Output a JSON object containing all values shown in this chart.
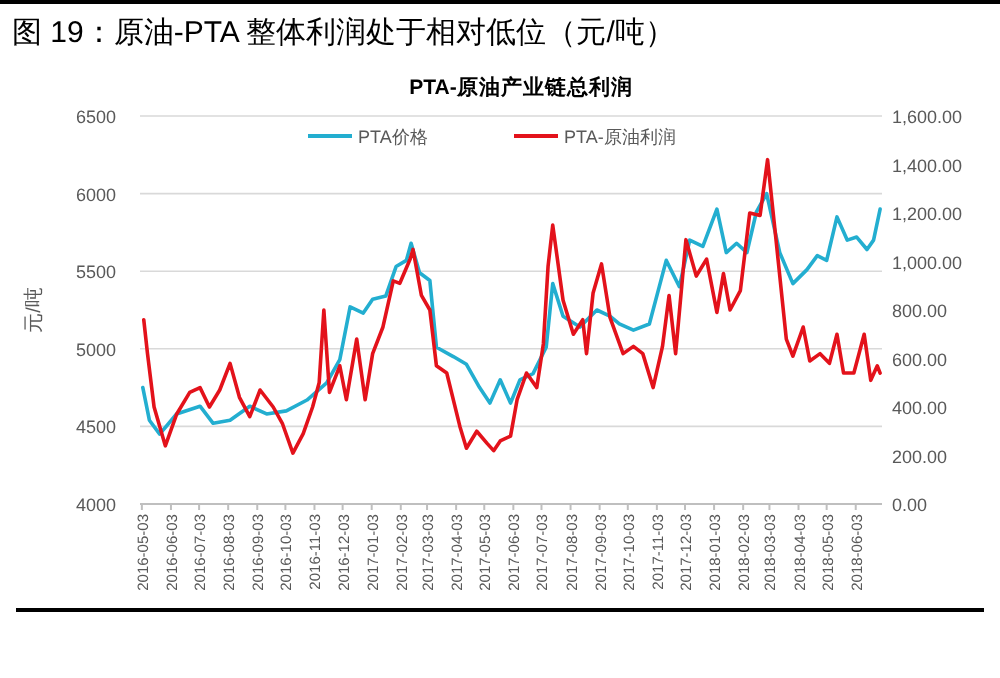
{
  "chart_data": {
    "type": "line",
    "title": "图 19：原油-PTA 整体利润处于相对低位（元/吨）",
    "subtitle": "PTA-原油产业链总利润",
    "ylabel": "元/吨",
    "xlim": [
      "2016-05-01",
      "2018-07-01"
    ],
    "xticks": [
      "2016-05-03",
      "2016-06-03",
      "2016-07-03",
      "2016-08-03",
      "2016-09-03",
      "2016-10-03",
      "2016-11-03",
      "2016-12-03",
      "2017-01-03",
      "2017-02-03",
      "2017-03-03",
      "2017-04-03",
      "2017-05-03",
      "2017-06-03",
      "2017-07-03",
      "2017-08-03",
      "2017-09-03",
      "2017-10-03",
      "2017-11-03",
      "2017-12-03",
      "2018-01-03",
      "2018-02-03",
      "2018-03-03",
      "2018-04-03",
      "2018-05-03",
      "2018-06-03"
    ],
    "ylim": [
      4000,
      6500
    ],
    "yticks": [
      4000,
      4500,
      5000,
      5500,
      6000,
      6500
    ],
    "y2lim": [
      0,
      1600
    ],
    "y2ticks": [
      {
        "value": 0,
        "label": "0.00"
      },
      {
        "value": 200,
        "label": "200.00"
      },
      {
        "value": 400,
        "label": "400.00"
      },
      {
        "value": 600,
        "label": "600.00"
      },
      {
        "value": 800,
        "label": "800.00"
      },
      {
        "value": 1000,
        "label": "1,000.00"
      },
      {
        "value": 1200,
        "label": "1,200.00"
      },
      {
        "value": 1400,
        "label": "1,400.00"
      },
      {
        "value": 1600,
        "label": "1,600.00"
      }
    ],
    "grid": "y",
    "legend": "top",
    "series": [
      {
        "name": "PTA价格",
        "color": "#23aed0",
        "x": [
          "2016-05-04",
          "2016-05-11",
          "2016-05-22",
          "2016-06-09",
          "2016-07-04",
          "2016-07-18",
          "2016-08-05",
          "2016-08-26",
          "2016-09-13",
          "2016-10-04",
          "2016-10-26",
          "2016-11-16",
          "2016-11-30",
          "2016-12-11",
          "2016-12-25",
          "2017-01-04",
          "2017-01-18",
          "2017-01-29",
          "2017-02-09",
          "2017-02-14",
          "2017-02-23",
          "2017-03-06",
          "2017-03-13",
          "2017-03-31",
          "2017-04-14",
          "2017-04-28",
          "2017-05-09",
          "2017-05-20",
          "2017-05-31",
          "2017-06-10",
          "2017-06-24",
          "2017-07-08",
          "2017-07-15",
          "2017-07-26",
          "2017-08-13",
          "2017-08-31",
          "2017-09-14",
          "2017-09-24",
          "2017-10-09",
          "2017-10-26",
          "2017-11-13",
          "2017-11-27",
          "2017-12-08",
          "2017-12-22",
          "2018-01-06",
          "2018-01-16",
          "2018-01-27",
          "2018-02-07",
          "2018-02-17",
          "2018-02-28",
          "2018-03-14",
          "2018-03-28",
          "2018-04-12",
          "2018-04-23",
          "2018-05-03",
          "2018-05-14",
          "2018-05-25",
          "2018-06-04",
          "2018-06-15",
          "2018-06-22",
          "2018-06-29"
        ],
        "values": [
          4750,
          4540,
          4450,
          4580,
          4630,
          4520,
          4540,
          4630,
          4580,
          4600,
          4670,
          4780,
          4930,
          5270,
          5230,
          5320,
          5340,
          5530,
          5570,
          5680,
          5490,
          5440,
          5010,
          4950,
          4900,
          4750,
          4650,
          4800,
          4650,
          4800,
          4840,
          5010,
          5420,
          5210,
          5140,
          5250,
          5210,
          5160,
          5120,
          5160,
          5570,
          5400,
          5700,
          5660,
          5900,
          5620,
          5680,
          5620,
          5880,
          6000,
          5620,
          5420,
          5510,
          5600,
          5570,
          5850,
          5700,
          5720,
          5640,
          5700,
          5900
        ]
      },
      {
        "name": "PTA-原油利润",
        "color": "#e3121b",
        "axis": "y2",
        "x": [
          "2016-05-05",
          "2016-05-09",
          "2016-05-16",
          "2016-05-28",
          "2016-06-09",
          "2016-06-23",
          "2016-07-04",
          "2016-07-14",
          "2016-07-25",
          "2016-08-05",
          "2016-08-15",
          "2016-08-26",
          "2016-09-06",
          "2016-09-20",
          "2016-09-30",
          "2016-10-11",
          "2016-10-22",
          "2016-11-01",
          "2016-11-08",
          "2016-11-13",
          "2016-11-19",
          "2016-11-30",
          "2016-12-07",
          "2016-12-18",
          "2016-12-27",
          "2017-01-04",
          "2017-01-15",
          "2017-01-26",
          "2017-02-02",
          "2017-02-13",
          "2017-02-16",
          "2017-02-25",
          "2017-03-06",
          "2017-03-13",
          "2017-03-24",
          "2017-04-07",
          "2017-04-14",
          "2017-04-25",
          "2017-05-06",
          "2017-05-13",
          "2017-05-20",
          "2017-05-31",
          "2017-06-07",
          "2017-06-17",
          "2017-06-28",
          "2017-07-05",
          "2017-07-10",
          "2017-07-15",
          "2017-07-26",
          "2017-08-06",
          "2017-08-16",
          "2017-08-20",
          "2017-08-27",
          "2017-09-05",
          "2017-09-14",
          "2017-09-28",
          "2017-10-09",
          "2017-10-19",
          "2017-10-30",
          "2017-11-09",
          "2017-11-16",
          "2017-11-23",
          "2017-12-04",
          "2017-12-15",
          "2017-12-26",
          "2018-01-06",
          "2018-01-13",
          "2018-01-20",
          "2018-01-31",
          "2018-02-10",
          "2018-02-21",
          "2018-03-01",
          "2018-03-10",
          "2018-03-21",
          "2018-03-28",
          "2018-04-08",
          "2018-04-15",
          "2018-04-26",
          "2018-05-06",
          "2018-05-14",
          "2018-05-21",
          "2018-06-01",
          "2018-06-12",
          "2018-06-19",
          "2018-06-26",
          "2018-06-29"
        ],
        "values": [
          760,
          620,
          400,
          240,
          370,
          460,
          480,
          400,
          470,
          580,
          440,
          360,
          470,
          400,
          330,
          210,
          290,
          400,
          500,
          800,
          460,
          570,
          430,
          680,
          430,
          620,
          730,
          920,
          910,
          1010,
          1050,
          860,
          800,
          570,
          540,
          320,
          230,
          300,
          250,
          220,
          260,
          280,
          430,
          540,
          480,
          660,
          980,
          1150,
          840,
          700,
          760,
          620,
          870,
          990,
          770,
          620,
          650,
          620,
          480,
          650,
          860,
          620,
          1090,
          940,
          1010,
          790,
          950,
          800,
          880,
          1200,
          1190,
          1420,
          1090,
          680,
          610,
          730,
          590,
          620,
          580,
          700,
          540,
          540,
          700,
          510,
          570,
          540
        ]
      }
    ]
  }
}
